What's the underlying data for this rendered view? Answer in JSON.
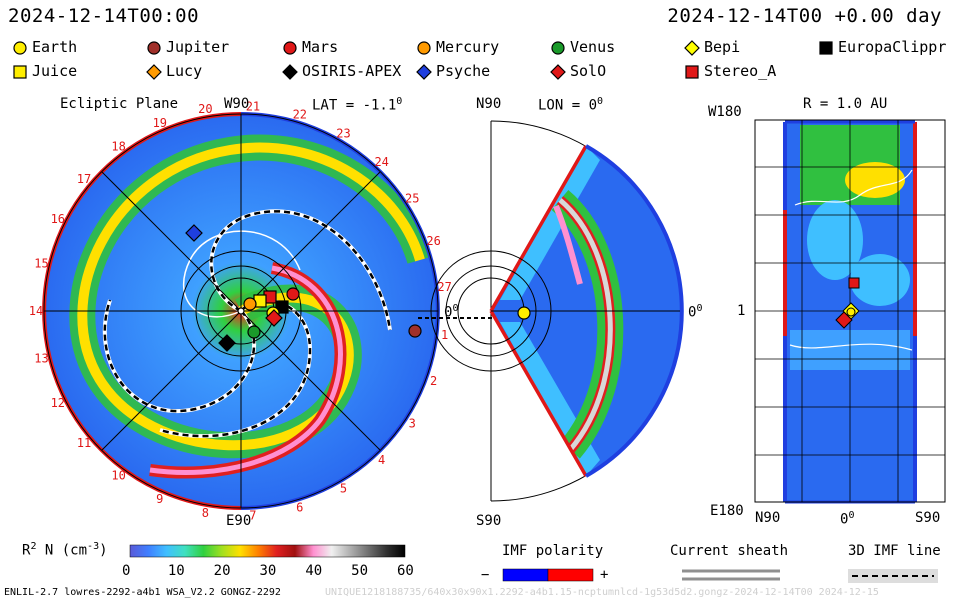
{
  "header": {
    "left_time": "2024-12-14T00:00",
    "right_time": "2024-12-14T00 +0.00 day"
  },
  "legend": [
    {
      "name": "Earth",
      "color": "#ffee00",
      "shape": "circle"
    },
    {
      "name": "Jupiter",
      "color": "#a0302a",
      "shape": "circle"
    },
    {
      "name": "Mars",
      "color": "#e01818",
      "shape": "circle"
    },
    {
      "name": "Mercury",
      "color": "#ff9a00",
      "shape": "circle"
    },
    {
      "name": "Venus",
      "color": "#1a9a2a",
      "shape": "circle"
    },
    {
      "name": "Bepi",
      "color": "#ffff00",
      "shape": "diamond"
    },
    {
      "name": "EuropaClippr",
      "color": "#000000",
      "shape": "square"
    },
    {
      "name": "Juice",
      "color": "#ffee00",
      "shape": "square"
    },
    {
      "name": "Lucy",
      "color": "#ff9a00",
      "shape": "diamond"
    },
    {
      "name": "OSIRIS-APEX",
      "color": "#000000",
      "shape": "diamond"
    },
    {
      "name": "Psyche",
      "color": "#1f3fe0",
      "shape": "diamond"
    },
    {
      "name": "SolO",
      "color": "#e01818",
      "shape": "diamond"
    },
    {
      "name": "Stereo_A",
      "color": "#e01818",
      "shape": "square"
    }
  ],
  "ecliptic": {
    "title": "Ecliptic Plane",
    "lat": "LAT = -1.1",
    "lat_sup": "0",
    "top_label": "W90",
    "bottom_label": "E90",
    "zero_label": "0",
    "zero_sup": "0",
    "sector_numbers": [
      "20",
      "21",
      "22",
      "23",
      "24",
      "25",
      "26",
      "27",
      "1",
      "2",
      "3",
      "4",
      "5",
      "6",
      "7",
      "8",
      "9",
      "10",
      "11",
      "12",
      "13",
      "14",
      "15",
      "16",
      "17",
      "18",
      "19"
    ]
  },
  "meridional": {
    "lon": "LON = 0",
    "lon_sup": "0",
    "top_label": "N90",
    "bottom_label": "S90",
    "zero_label": "0",
    "zero_sup": "0"
  },
  "synoptic": {
    "radius": "R = 1.0 AU",
    "top_left": "W180",
    "bottom_left": "E180",
    "mid_left": "1",
    "x_left": "N90",
    "x_mid": "0",
    "x_mid_sup": "0",
    "x_right": "S90"
  },
  "colorbar": {
    "label": "R",
    "label_sup": "2",
    "label_rest": " N (cm",
    "label_exp": "-3",
    "label_close": ")",
    "ticks": [
      "0",
      "10",
      "20",
      "30",
      "40",
      "50",
      "60"
    ],
    "stops": [
      "#5a5ad8",
      "#3f7fff",
      "#3fbfff",
      "#3fe0c0",
      "#30d040",
      "#a0e020",
      "#ffe000",
      "#ff8000",
      "#e02020",
      "#a01010",
      "#ff90d0",
      "#f0f0f0",
      "#b0b0b0",
      "#707070",
      "#303030",
      "#000000"
    ]
  },
  "imf": {
    "title": "IMF polarity",
    "minus": "−",
    "plus": "+",
    "neg_color": "#0000ff",
    "pos_color": "#ff0000"
  },
  "sheath": {
    "title": "Current sheath"
  },
  "imf3d": {
    "title": "3D IMF line"
  },
  "footer": {
    "left": "ENLIL-2.7 lowres-2292-a4b1 WSA_V2.2 GONGZ-2292",
    "right": "UNIQUE1218188735/640x30x90x1.2292-a4b1.15-ncptumnlcd-1g53d5d2.gongz-2024-12-14T00   2024-12-15"
  }
}
